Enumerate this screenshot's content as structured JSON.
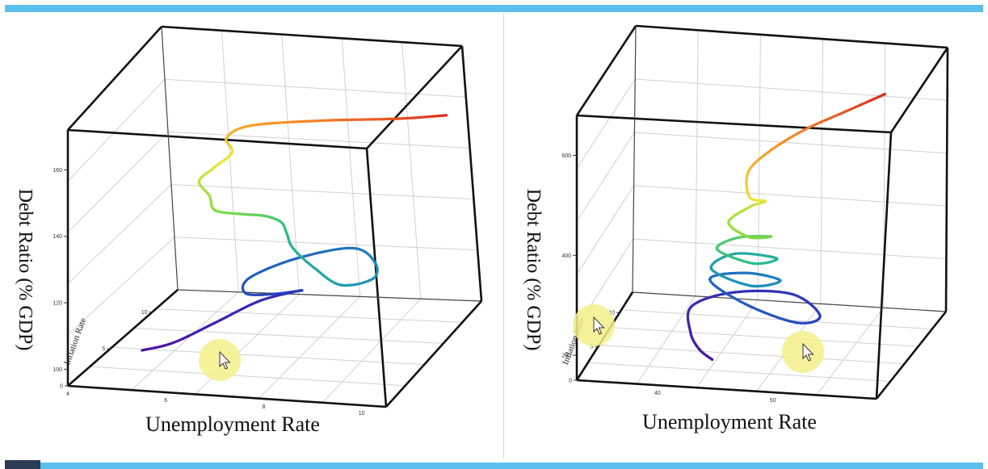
{
  "colors": {
    "frame_bar": "#5bc0eb",
    "box_edge": "#111111",
    "grid": "#d0d0d0",
    "cursor_highlight": "#f3f08a"
  },
  "chart_data": [
    {
      "type": "line",
      "xlabel": "Unemployment Rate",
      "ylabel": "Inflation Rate",
      "zlabel": "Debt Ratio (% GDP)",
      "x_ticks": [
        "4",
        "6",
        "8",
        "10"
      ],
      "y_ticks": [
        "0",
        "5",
        "10"
      ],
      "z_ticks": [
        "100",
        "120",
        "140",
        "160"
      ],
      "colormap": "jet",
      "x": [
        5.0,
        5.5,
        6.0,
        6.5,
        7.0,
        7.3,
        7.0,
        6.6,
        6.4,
        7.0,
        8.0,
        8.8,
        9.2,
        8.8,
        8.0,
        7.3,
        7.0,
        6.8,
        6.5,
        6.2,
        5.8,
        5.6,
        5.3,
        5.5,
        5.8,
        5.6,
        6.0,
        7.5,
        9.0,
        10.0
      ],
      "y": [
        3.0,
        3.8,
        5.8,
        8.0,
        9.0,
        8.5,
        7.0,
        6.0,
        7.5,
        9.5,
        10.5,
        8.5,
        6.0,
        4.5,
        6.0,
        7.5,
        8.5,
        9.0,
        8.8,
        8.0,
        7.0,
        7.5,
        8.0,
        8.5,
        9.0,
        9.5,
        10.0,
        10.0,
        10.0,
        10.0
      ],
      "z": [
        100,
        101,
        103,
        105,
        106,
        108,
        110,
        112,
        113,
        115,
        117,
        118,
        119,
        120,
        121,
        123,
        125,
        127,
        129,
        131,
        134,
        137,
        140,
        143,
        147,
        150,
        153,
        156,
        158,
        160
      ]
    },
    {
      "type": "line",
      "xlabel": "Unemployment Rate",
      "ylabel": "Inflation Rate",
      "zlabel": "Debt Ratio (% GDP)",
      "x_ticks": [
        "40",
        "50"
      ],
      "y_ticks": [
        "0",
        "5",
        "10"
      ],
      "z_ticks": [
        "200",
        "400",
        "600"
      ],
      "colormap": "jet",
      "x": [
        44.0,
        42.5,
        41.0,
        40.0,
        43.0,
        48.0,
        51.5,
        50.0,
        45.0,
        41.0,
        44.0,
        47.5,
        45.5,
        41.5,
        43.0,
        47.0,
        45.5,
        42.0,
        43.5,
        46.5,
        45.0,
        43.0,
        44.5,
        46.0,
        45.0,
        44.5,
        46.0,
        49.0,
        53.0,
        56.0
      ],
      "y": [
        2.0,
        3.0,
        5.0,
        8.0,
        10.0,
        10.0,
        7.0,
        5.5,
        7.0,
        9.5,
        10.0,
        8.5,
        7.0,
        8.5,
        10.0,
        9.0,
        7.5,
        8.5,
        9.5,
        9.0,
        8.0,
        8.5,
        9.5,
        9.0,
        8.0,
        9.0,
        9.5,
        9.8,
        10.0,
        10.0
      ],
      "z": [
        180,
        185,
        190,
        200,
        205,
        208,
        210,
        215,
        225,
        235,
        245,
        255,
        262,
        270,
        282,
        292,
        300,
        310,
        322,
        335,
        345,
        365,
        385,
        405,
        425,
        460,
        495,
        540,
        585,
        620
      ]
    }
  ]
}
